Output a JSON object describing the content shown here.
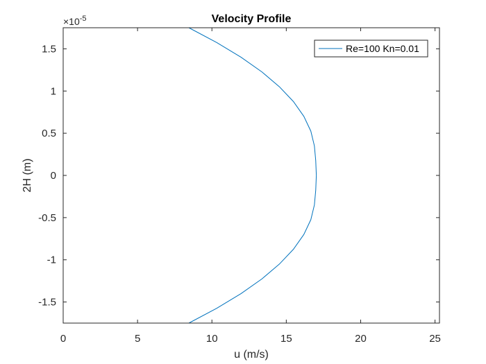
{
  "chart_data": {
    "type": "line",
    "title": "Velocity Profile",
    "xlabel": "u (m/s)",
    "ylabel": "2H (m)",
    "xlim": [
      0,
      25.3
    ],
    "ylim": [
      -1.75,
      1.75
    ],
    "y_exponent_label": "×10",
    "y_exponent_power": "-5",
    "xticks": [
      0,
      5,
      10,
      15,
      20,
      25
    ],
    "xtick_labels": [
      "0",
      "5",
      "10",
      "15",
      "20",
      "25"
    ],
    "yticks": [
      -1.5,
      -1,
      -0.5,
      0,
      0.5,
      1,
      1.5
    ],
    "ytick_labels": [
      "-1.5",
      "-1",
      "-0.5",
      "0",
      "0.5",
      "1",
      "1.5"
    ],
    "grid": false,
    "legend_position": "top-right",
    "series": [
      {
        "name": "Re=100 Kn=0.01",
        "color": "#0072BD",
        "x": [
          8.45,
          10.32,
          11.96,
          13.37,
          14.54,
          15.48,
          16.18,
          16.65,
          16.89,
          16.98,
          17.02,
          16.98,
          16.89,
          16.65,
          16.18,
          15.48,
          14.54,
          13.37,
          11.96,
          10.32,
          8.45
        ],
        "y": [
          -1.75,
          -1.575,
          -1.4,
          -1.225,
          -1.05,
          -0.875,
          -0.7,
          -0.525,
          -0.35,
          -0.175,
          0,
          0.175,
          0.35,
          0.525,
          0.7,
          0.875,
          1.05,
          1.225,
          1.4,
          1.575,
          1.75
        ]
      }
    ]
  }
}
